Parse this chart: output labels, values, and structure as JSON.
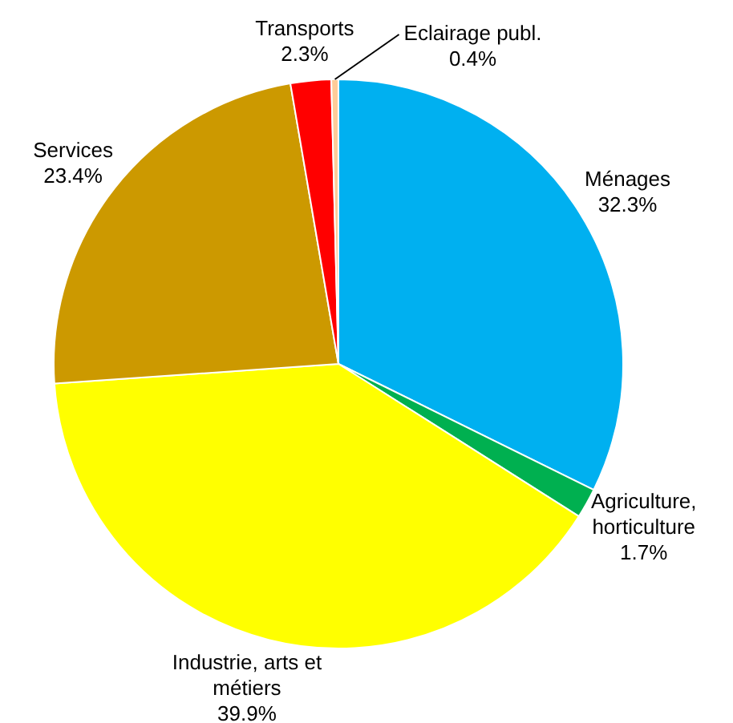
{
  "chart_data": {
    "type": "pie",
    "categories": [
      "Ménages",
      "Agriculture, horticulture",
      "Industrie, arts et métiers",
      "Services",
      "Transports",
      "Eclairage publ."
    ],
    "values": [
      32.3,
      1.7,
      39.9,
      23.4,
      2.3,
      0.4
    ],
    "value_labels": [
      "32.3%",
      "1.7%",
      "39.9%",
      "23.4%",
      "2.3%",
      "0.4%"
    ],
    "colors": [
      "#00b0f0",
      "#00b050",
      "#ffff00",
      "#cc9900",
      "#ff0000",
      "#ffcc99"
    ],
    "legend": false
  }
}
